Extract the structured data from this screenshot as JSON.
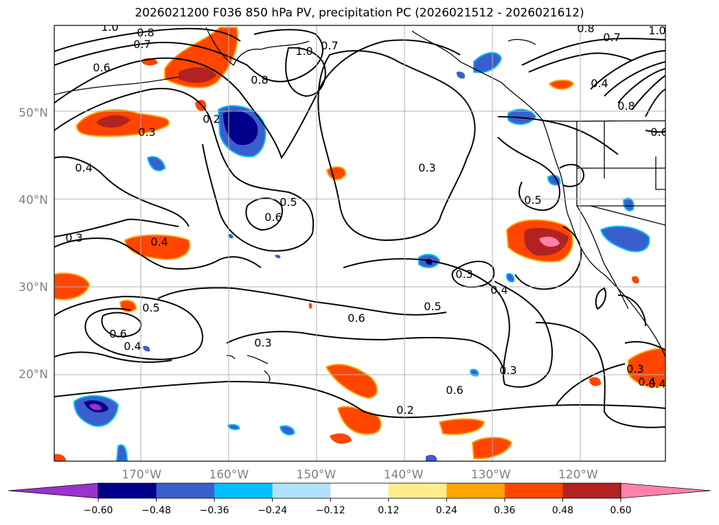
{
  "title": "2026021200 F036 850 hPa PV, precipitation PC (2026021512 - 2026021612)",
  "map": {
    "lat_labels": [
      "50°N",
      "40°N",
      "30°N",
      "20°N"
    ],
    "lat_values": [
      50,
      40,
      30,
      20
    ],
    "lon_labels": [
      "170°W",
      "160°W",
      "150°W",
      "140°W",
      "130°W",
      "120°W"
    ],
    "lon_values": [
      -170,
      -160,
      -150,
      -140,
      -130,
      -120
    ],
    "lon_range": [
      -180,
      -110
    ],
    "lat_range": [
      10,
      60
    ],
    "grid": true
  },
  "colorbar": {
    "ticks": [
      "−0.60",
      "−0.48",
      "−0.36",
      "−0.24",
      "−0.12",
      "0.12",
      "0.24",
      "0.36",
      "0.48",
      "0.60"
    ],
    "colors": [
      "#9a32cd",
      "#00008b",
      "#3a5fcd",
      "#00bfff",
      "#b0e2ff",
      "#ffffff",
      "#ffec8b",
      "#ffa500",
      "#ff4500",
      "#b22222",
      "#ff82ab"
    ]
  },
  "pv_contour_labels": [
    "1.0",
    "0.8",
    "0.7",
    "0.6",
    "0.2",
    "0.3",
    "0.4",
    "0.3",
    "0.4",
    "0.5",
    "0.6",
    "0.5",
    "0.4",
    "0.6",
    "0.3",
    "0.2",
    "0.3",
    "0.4",
    "0.5",
    "0.3",
    "0.6",
    "0.5",
    "0.6",
    "0.7",
    "0.8",
    "0.7",
    "0.8",
    "0.4",
    "0.3",
    "1.0",
    "0.6",
    "0.4",
    "1.0",
    "0.8",
    "0.3",
    "0.4"
  ],
  "colors": {
    "contour": "#000000",
    "grid": "#b0b0b0",
    "land_outline": "#000000"
  }
}
